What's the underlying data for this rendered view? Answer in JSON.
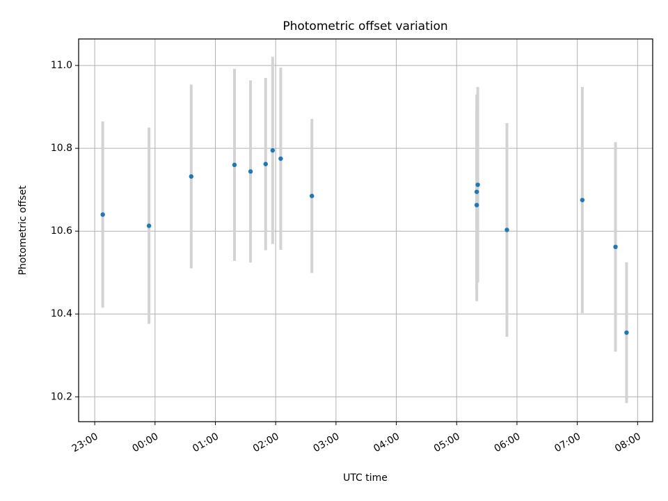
{
  "chart_data": {
    "type": "scatter",
    "title": "Photometric offset variation",
    "xlabel": "UTC time",
    "ylabel": "Photometric offset",
    "x_axis_kind": "time",
    "xlim": [
      "22:44",
      "08:15"
    ],
    "ylim": [
      10.14,
      11.064
    ],
    "grid": true,
    "x_ticks": [
      "23:00",
      "00:00",
      "01:00",
      "02:00",
      "03:00",
      "04:00",
      "05:00",
      "06:00",
      "07:00",
      "08:00"
    ],
    "y_ticks": [
      "10.2",
      "10.4",
      "10.6",
      "10.8",
      "11.0"
    ],
    "colors": {
      "point": "#1f77b4",
      "errorbar": "#d3d3d3",
      "grid": "#b0b0b0"
    },
    "points": [
      {
        "x": "23:08",
        "y": 10.64,
        "yerr": 0.225
      },
      {
        "x": "23:54",
        "y": 10.613,
        "yerr": 0.237
      },
      {
        "x": "00:36",
        "y": 10.732,
        "yerr": 0.222
      },
      {
        "x": "01:19",
        "y": 10.76,
        "yerr": 0.232
      },
      {
        "x": "01:35",
        "y": 10.744,
        "yerr": 0.22
      },
      {
        "x": "01:50",
        "y": 10.762,
        "yerr": 0.208
      },
      {
        "x": "01:57",
        "y": 10.795,
        "yerr": 0.226
      },
      {
        "x": "02:05",
        "y": 10.775,
        "yerr": 0.22
      },
      {
        "x": "02:36",
        "y": 10.685,
        "yerr": 0.186
      },
      {
        "x": "05:20",
        "y": 10.695,
        "yerr": 0.235
      },
      {
        "x": "05:20",
        "y": 10.663,
        "yerr": 0.232
      },
      {
        "x": "05:21",
        "y": 10.712,
        "yerr": 0.236
      },
      {
        "x": "05:50",
        "y": 10.603,
        "yerr": 0.258
      },
      {
        "x": "07:05",
        "y": 10.675,
        "yerr": 0.273
      },
      {
        "x": "07:38",
        "y": 10.562,
        "yerr": 0.253
      },
      {
        "x": "07:49",
        "y": 10.355,
        "yerr": 0.17
      }
    ]
  }
}
